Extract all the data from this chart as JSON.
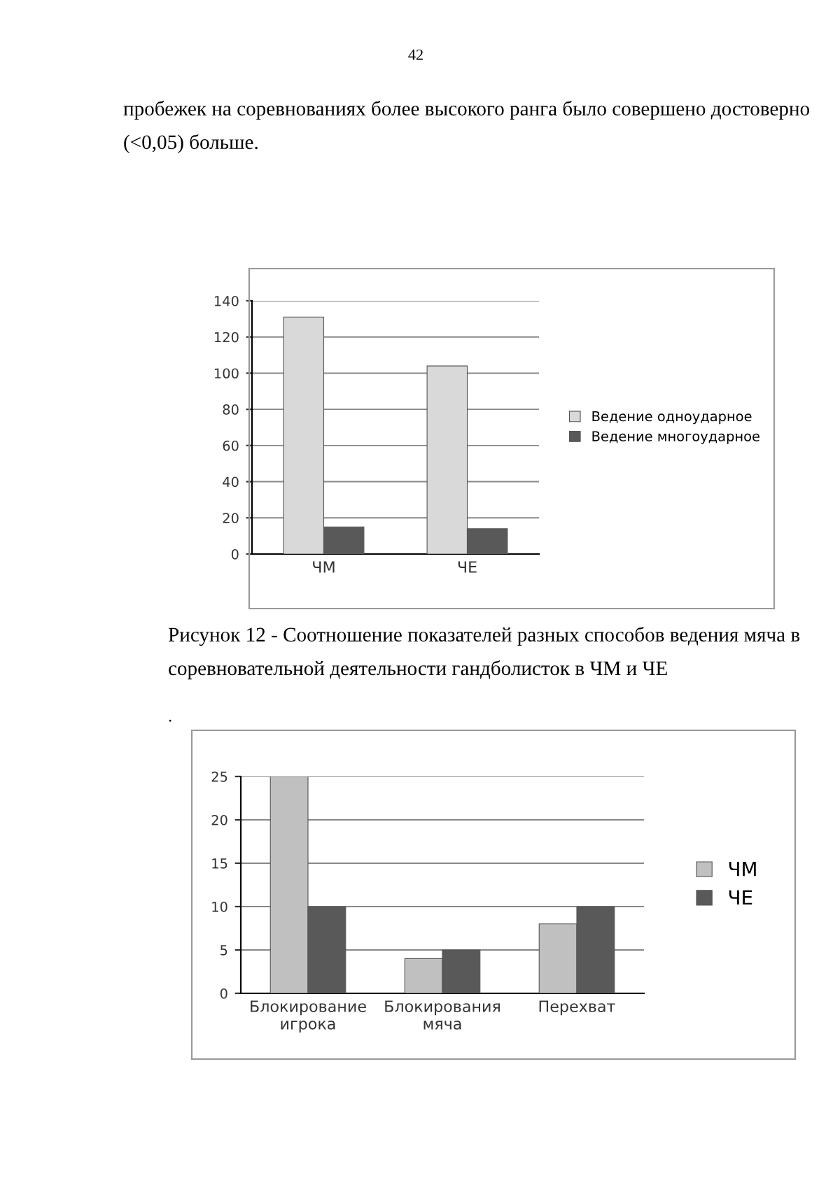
{
  "chart_data": [
    {
      "type": "bar",
      "categories": [
        "ЧМ",
        "ЧЕ"
      ],
      "series": [
        {
          "name": "Ведение одноударное",
          "color": "#d9d9d9",
          "values": [
            131,
            104
          ]
        },
        {
          "name": "Ведение многоударное",
          "color": "#595959",
          "values": [
            15,
            14
          ]
        }
      ],
      "ylim": [
        0,
        140
      ],
      "yticks": [
        0,
        20,
        40,
        60,
        80,
        100,
        120,
        140
      ],
      "grid": "y",
      "legend": "right",
      "annotations": [
        "42",
        "пробежек на соревнованиях более высокого ранга было совершено достоверно (˂0,05) больше.",
        "Рисунок 12 - Соотношение показателей разных способов ведения мяча в соревновательной деятельности гандболисток в ЧМ и ЧЕ"
      ]
    },
    {
      "type": "bar",
      "categories": [
        "Блокирование\nигрока",
        "Блокирования\nмяча",
        "Перехват"
      ],
      "series": [
        {
          "name": "ЧМ",
          "color": "#c0c0c0",
          "values": [
            25,
            4,
            8
          ]
        },
        {
          "name": "ЧЕ",
          "color": "#595959",
          "values": [
            10,
            5,
            10
          ]
        }
      ],
      "ylim": [
        0,
        25
      ],
      "yticks": [
        0,
        5,
        10,
        15,
        20,
        25
      ],
      "grid": "y",
      "legend": "right",
      "annotations": [
        "."
      ]
    }
  ]
}
